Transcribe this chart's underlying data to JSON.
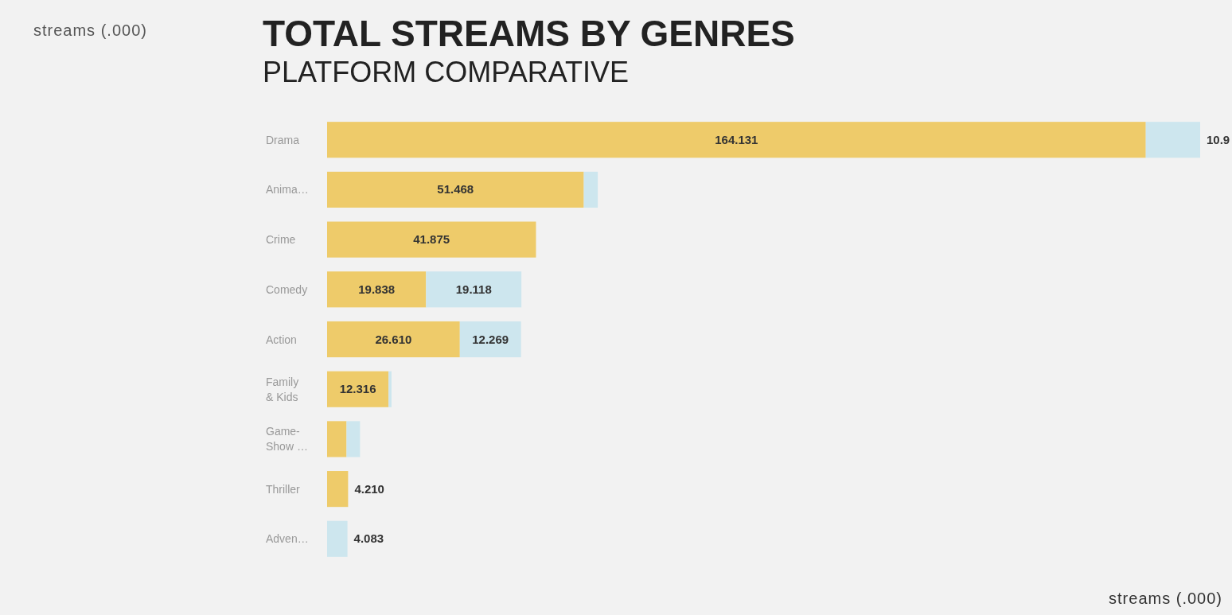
{
  "chart_data": {
    "type": "bar",
    "orientation": "horizontal",
    "stacked": true,
    "title": "TOTAL STREAMS BY GENRES",
    "subtitle": "PLATFORM COMPARATIVE",
    "xlabel": "streams (.000)",
    "annotations": [
      "streams (.000)"
    ],
    "categories": [
      "Drama",
      "Anima…",
      "Crime",
      "Comedy",
      "Action",
      "Family & Kids",
      "Game-Show …",
      "Thriller",
      "Adven…"
    ],
    "series": [
      {
        "color": "#eecb6a",
        "values": [
          164.131,
          51.468,
          41.875,
          19.838,
          26.61,
          12.316,
          3.9,
          4.21,
          0
        ],
        "value_labels": [
          "164.131",
          "51.468",
          "41.875",
          "19.838",
          "26.610",
          "12.316",
          null,
          "4.210",
          null
        ]
      },
      {
        "color": "#cde6ee",
        "values": [
          10.9,
          2.8,
          0,
          19.118,
          12.269,
          0.6,
          2.7,
          0,
          4.083
        ],
        "value_labels": [
          "10.9",
          null,
          null,
          "19.118",
          "12.269",
          null,
          null,
          null,
          "4.083"
        ]
      }
    ],
    "tick_labels": "y"
  }
}
